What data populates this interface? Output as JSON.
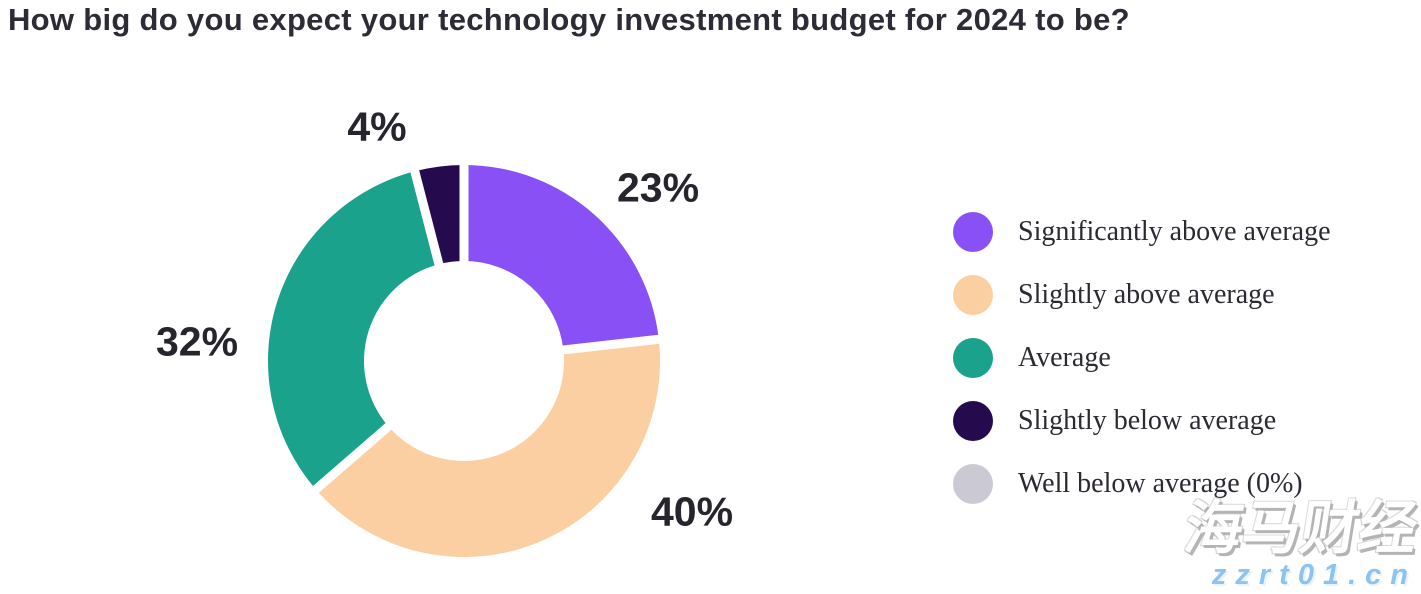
{
  "title": "How big do you expect your technology investment budget for 2024 to be?",
  "chart_data": {
    "type": "pie",
    "subtype": "donut",
    "title": "How big do you expect your technology investment budget for 2024 to be?",
    "categories": [
      "Significantly above average",
      "Slightly above average",
      "Average",
      "Slightly below average",
      "Well below average"
    ],
    "values": [
      23,
      40,
      32,
      4,
      0
    ],
    "unit": "%",
    "start_angle_deg": 0,
    "direction": "clockwise",
    "inner_radius_ratio": 0.51,
    "gap_color": "#ffffff",
    "legend_position": "right",
    "slices": [
      {
        "label": "Significantly above average",
        "value": 23,
        "pct_label": "23%",
        "color": "#8951f5"
      },
      {
        "label": "Slightly above average",
        "value": 40,
        "pct_label": "40%",
        "color": "#fbcfa2"
      },
      {
        "label": "Average",
        "value": 32,
        "pct_label": "32%",
        "color": "#1aa28c"
      },
      {
        "label": "Slightly below average",
        "value": 4,
        "pct_label": "4%",
        "color": "#250a4e"
      }
    ]
  },
  "legend": {
    "items": [
      {
        "label": "Significantly above average",
        "color": "#8951f5"
      },
      {
        "label": "Slightly above average",
        "color": "#fbcfa2"
      },
      {
        "label": "Average",
        "color": "#1aa28c"
      },
      {
        "label": "Slightly below average",
        "color": "#250a4e"
      },
      {
        "label": "Well below average (0%)",
        "color": "#cbc9d4"
      }
    ]
  },
  "watermark": {
    "brand": "海马财经",
    "url": "zzrt01.cn"
  }
}
